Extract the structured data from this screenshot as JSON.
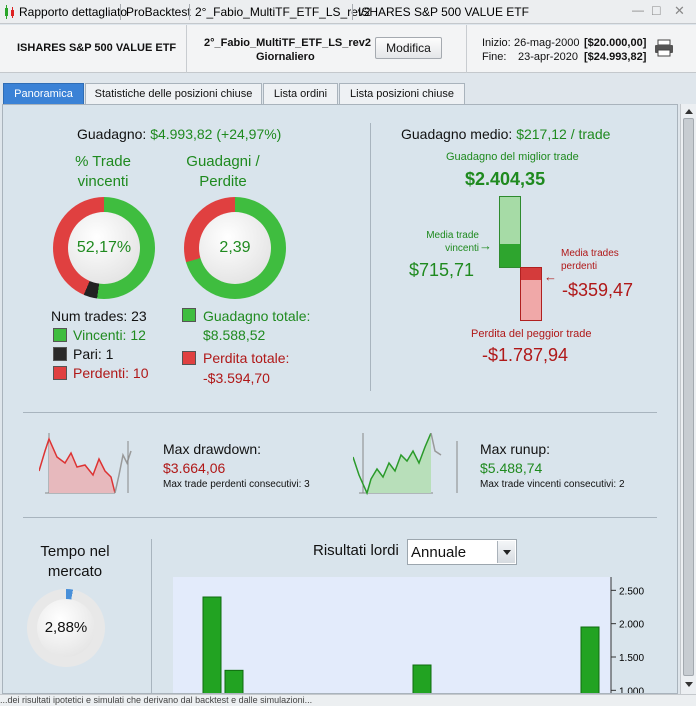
{
  "window": {
    "tabs": [
      "Rapporto dettagliato",
      "ProBacktest",
      "2°_Fabio_MultiTF_ETF_LS_rev2",
      "ISHARES S&P 500 VALUE ETF"
    ],
    "controls": {
      "minimize": "—",
      "maximize": "□",
      "close": "✕"
    }
  },
  "header": {
    "instrument": "ISHARES S&P 500 VALUE ETF",
    "system_name": "2°_Fabio_MultiTF_ETF_LS_rev2",
    "timeframe": "Giornaliero",
    "modify_label": "Modifica",
    "start_label": "Inizio:",
    "start_date": "26-mag-2000",
    "start_capital": "[$20.000,00]",
    "end_label": "Fine:",
    "end_date": "23-apr-2020",
    "end_capital": "[$24.993,82]"
  },
  "tabs": [
    "Panoramica",
    "Statistiche delle posizioni chiuse",
    "Lista ordini",
    "Lista posizioni chiuse"
  ],
  "active_tab": "Panoramica",
  "summary": {
    "gain_label": "Guadagno:",
    "gain_value": "$4.993,82 (+24,97%)",
    "win_title": "% Trade vincenti",
    "win_value": "52,17%",
    "win_fraction": 0.5217,
    "gl_title": "Guadagni / Perdite",
    "gl_value": "2,39",
    "num_trades": "Num trades: 23",
    "winners": "Vincenti: 12",
    "even": "Pari: 1",
    "losers": "Perdenti: 10",
    "total_gain_label": "Guadagno totale:",
    "total_gain_value": "$8.588,52",
    "total_loss_label": "Perdita totale:",
    "total_loss_value": "-$3.594,70"
  },
  "avg": {
    "title_label": "Guadagno medio:",
    "title_value": "$217,12 / trade",
    "best_label": "Guadagno del miglior trade",
    "best_value": "$2.404,35",
    "avg_win_label": "Media trade vincenti",
    "avg_win_value": "$715,71",
    "avg_loss_label": "Media trades perdenti",
    "avg_loss_value": "-$359,47",
    "worst_label": "Perdita del peggior trade",
    "worst_value": "-$1.787,94"
  },
  "drawdown": {
    "title": "Max drawdown:",
    "value": "$3.664,06",
    "consec": "Max trade perdenti consecutivi:  3"
  },
  "runup": {
    "title": "Max runup:",
    "value": "$5.488,74",
    "consec": "Max trade vincenti consecutivi: 2"
  },
  "market": {
    "title": "Tempo nel mercato",
    "value": "2,88%",
    "fraction": 0.0288
  },
  "results": {
    "label": "Risultati lordi",
    "select": "Annuale"
  },
  "chart_data": {
    "type": "bar",
    "title": "Risultati lordi",
    "ytick_labels": [
      "2.500",
      "2.000",
      "1.500",
      "1.000"
    ],
    "yticks": [
      2500,
      2000,
      1500,
      1000
    ],
    "ylim": [
      900,
      2700
    ],
    "bars": [
      {
        "value": 2400
      },
      {
        "value": 1300
      },
      {
        "value": 1380
      },
      {
        "value": 1950
      }
    ],
    "colors": {
      "bar": "#22a322",
      "bar_edge": "#0f6b0f",
      "plot_bg": "#e3ebfb"
    }
  },
  "statusbar": {
    "text": "...dei risultati ipotetici e simulati che derivano dal backtest e dalle simulazioni..."
  }
}
